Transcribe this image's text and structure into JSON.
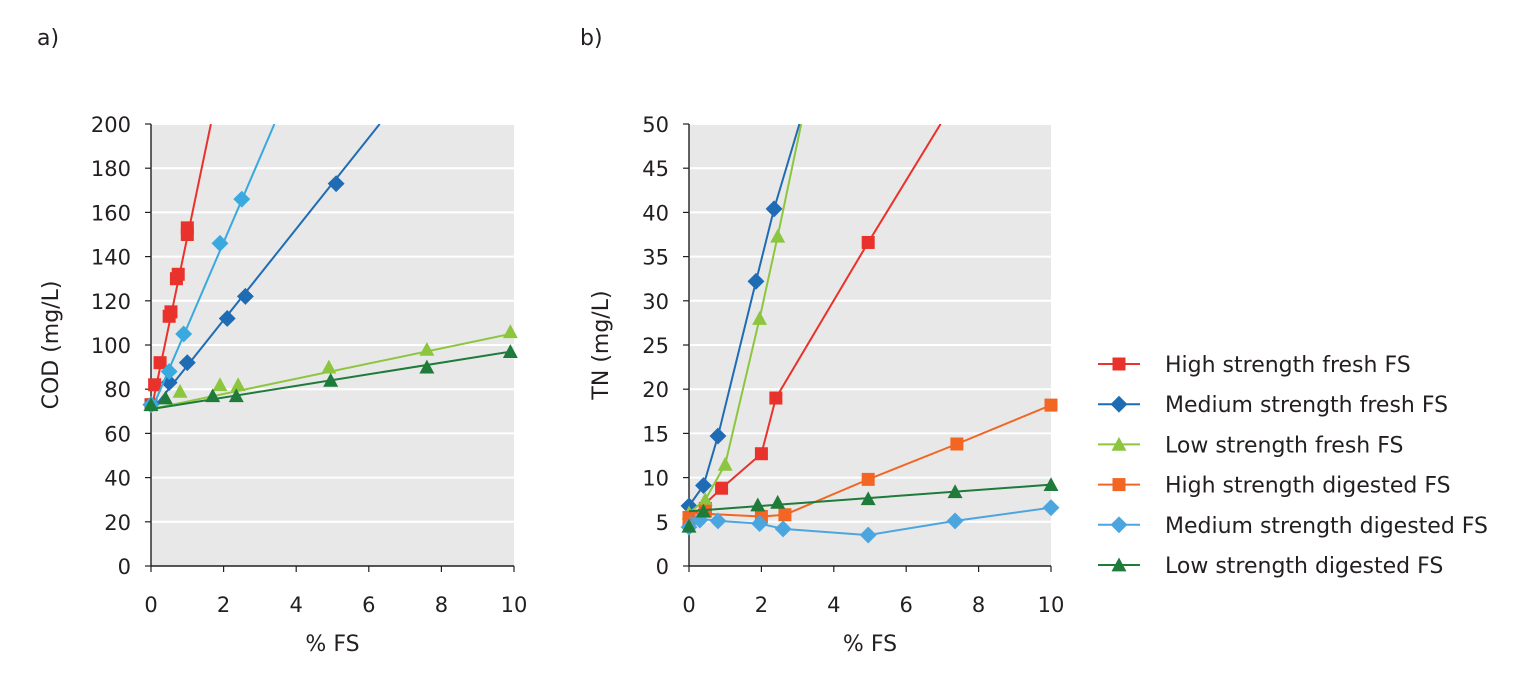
{
  "panels": [
    {
      "label": "a)"
    },
    {
      "label": "b)"
    }
  ],
  "colors": {
    "plot_bg": "#e8e8e8",
    "grid": "#ffffff",
    "axis": "#231f20",
    "high_fresh": "#e8322b",
    "medium_fresh": "#1f6cb4",
    "low_fresh": "#8cc63f",
    "high_digested": "#f26522",
    "medium_digested": "#4ba6e0",
    "low_digested": "#1e7b3a",
    "extra_light_blue_line": "#39a9e0"
  },
  "chart_data": [
    {
      "type": "scatter",
      "title": "",
      "xlabel": "% FS",
      "ylabel": "COD (mg/L)",
      "xlim": [
        0,
        10
      ],
      "ylim": [
        0,
        200
      ],
      "xticks": [
        "0",
        "2",
        "4",
        "6",
        "8",
        "10"
      ],
      "yticks": [
        "0",
        "20",
        "40",
        "60",
        "80",
        "100",
        "120",
        "140",
        "160",
        "180",
        "200"
      ],
      "series": [
        {
          "name": "High strength fresh FS",
          "color": "#e8322b",
          "marker": "square",
          "points": [
            [
              0,
              73
            ],
            [
              0.1,
              82
            ],
            [
              0.25,
              92
            ],
            [
              0.5,
              113
            ],
            [
              0.55,
              115
            ],
            [
              0.7,
              130
            ],
            [
              0.75,
              132
            ],
            [
              1.0,
              150
            ],
            [
              1.0,
              153
            ]
          ],
          "fit": [
            [
              0,
              70
            ],
            [
              1.65,
              200
            ]
          ]
        },
        {
          "name": "Medium strength fresh FS",
          "color": "#1f6cb4",
          "marker": "diamond",
          "points": [
            [
              0,
              73
            ],
            [
              0.5,
              83
            ],
            [
              1.0,
              92
            ],
            [
              2.1,
              112
            ],
            [
              2.6,
              122
            ],
            [
              5.1,
              173
            ]
          ],
          "fit": [
            [
              0,
              70
            ],
            [
              6.3,
              200
            ]
          ]
        },
        {
          "name": "Low strength fresh FS",
          "color": "#8cc63f",
          "marker": "triangle",
          "points": [
            [
              0,
              73
            ],
            [
              0.8,
              79
            ],
            [
              1.9,
              82
            ],
            [
              2.4,
              82
            ],
            [
              4.9,
              90
            ],
            [
              7.6,
              98
            ],
            [
              9.9,
              106
            ]
          ],
          "fit": [
            [
              0,
              71
            ],
            [
              9.9,
              105
            ]
          ]
        },
        {
          "name": "Medium strength digested FS",
          "color": "#39a9e0",
          "marker": "diamond",
          "points": [
            [
              0,
              73
            ],
            [
              0.5,
              88
            ],
            [
              0.9,
              105
            ],
            [
              1.9,
              146
            ],
            [
              2.5,
              166
            ]
          ],
          "fit": [
            [
              0,
              70
            ],
            [
              3.4,
              200
            ]
          ]
        },
        {
          "name": "Low strength digested FS",
          "color": "#1e7b3a",
          "marker": "triangle",
          "points": [
            [
              0,
              73
            ],
            [
              0.4,
              76
            ],
            [
              1.7,
              77
            ],
            [
              2.35,
              77
            ],
            [
              4.95,
              84
            ],
            [
              7.6,
              90
            ],
            [
              9.9,
              97
            ]
          ],
          "fit": [
            [
              0,
              71
            ],
            [
              9.9,
              97
            ]
          ]
        }
      ]
    },
    {
      "type": "scatter",
      "title": "",
      "xlabel": "% FS",
      "ylabel": "TN (mg/L)",
      "xlim": [
        0,
        10
      ],
      "ylim": [
        0,
        50
      ],
      "xticks": [
        "0",
        "2",
        "4",
        "6",
        "8",
        "10"
      ],
      "yticks": [
        "0",
        "5",
        "10",
        "15",
        "20",
        "25",
        "30",
        "35",
        "40",
        "45",
        "50"
      ],
      "series": [
        {
          "name": "High strength fresh FS",
          "color": "#e8322b",
          "marker": "square",
          "points": [
            [
              0,
              5.3
            ],
            [
              0.45,
              6.5
            ],
            [
              0.9,
              8.8
            ],
            [
              2.0,
              12.7
            ],
            [
              2.4,
              19.0
            ],
            [
              4.95,
              36.6
            ]
          ],
          "fit": [
            [
              0,
              5.3
            ],
            [
              0.9,
              8.8
            ],
            [
              2.0,
              12.7
            ],
            [
              2.4,
              19.0
            ],
            [
              4.95,
              36.6
            ],
            [
              6.95,
              50
            ]
          ]
        },
        {
          "name": "Medium strength fresh FS",
          "color": "#1f6cb4",
          "marker": "diamond",
          "points": [
            [
              0,
              6.8
            ],
            [
              0.4,
              9.1
            ],
            [
              0.8,
              14.7
            ],
            [
              1.85,
              32.2
            ],
            [
              2.35,
              40.4
            ]
          ],
          "fit": [
            [
              0,
              6.8
            ],
            [
              0.4,
              9.1
            ],
            [
              0.8,
              14.7
            ],
            [
              1.85,
              32.2
            ],
            [
              2.35,
              40.4
            ],
            [
              3.05,
              50
            ]
          ]
        },
        {
          "name": "Low strength fresh FS",
          "color": "#8cc63f",
          "marker": "triangle",
          "points": [
            [
              0,
              6.0
            ],
            [
              0.45,
              7.5
            ],
            [
              1.0,
              11.5
            ],
            [
              1.95,
              28.0
            ],
            [
              2.45,
              37.3
            ]
          ],
          "fit": [
            [
              0,
              6.0
            ],
            [
              0.45,
              7.5
            ],
            [
              1.0,
              11.5
            ],
            [
              1.95,
              28.0
            ],
            [
              2.45,
              37.3
            ],
            [
              3.1,
              50
            ]
          ]
        },
        {
          "name": "High strength digested FS",
          "color": "#f26522",
          "marker": "square",
          "points": [
            [
              0,
              5.5
            ],
            [
              0.45,
              6.2
            ],
            [
              2.0,
              5.6
            ],
            [
              2.65,
              5.8
            ],
            [
              4.95,
              9.8
            ],
            [
              7.4,
              13.8
            ],
            [
              10,
              18.2
            ]
          ],
          "fit": [
            [
              0,
              6.0
            ],
            [
              2.0,
              5.6
            ],
            [
              2.65,
              5.8
            ],
            [
              4.95,
              9.8
            ],
            [
              7.4,
              13.8
            ],
            [
              10,
              18.2
            ]
          ]
        },
        {
          "name": "Medium strength digested FS",
          "color": "#4ba6e0",
          "marker": "diamond",
          "points": [
            [
              0,
              4.4
            ],
            [
              0.3,
              5.2
            ],
            [
              0.8,
              5.1
            ],
            [
              1.95,
              4.8
            ],
            [
              2.6,
              4.2
            ],
            [
              4.95,
              3.5
            ],
            [
              7.35,
              5.1
            ],
            [
              10,
              6.6
            ]
          ],
          "fit": [
            [
              0,
              5.5
            ],
            [
              0.8,
              5.1
            ],
            [
              1.95,
              4.8
            ],
            [
              2.6,
              4.2
            ],
            [
              4.95,
              3.5
            ],
            [
              7.35,
              5.1
            ],
            [
              10,
              6.6
            ]
          ]
        },
        {
          "name": "Low strength digested FS",
          "color": "#1e7b3a",
          "marker": "triangle",
          "points": [
            [
              0,
              4.5
            ],
            [
              0.4,
              6.2
            ],
            [
              1.9,
              6.9
            ],
            [
              2.45,
              7.2
            ],
            [
              4.95,
              7.6
            ],
            [
              7.35,
              8.4
            ],
            [
              10,
              9.2
            ]
          ],
          "fit": [
            [
              0,
              6.2
            ],
            [
              10,
              9.2
            ]
          ]
        }
      ]
    }
  ],
  "legend": {
    "placement": "right",
    "items": [
      {
        "label": "High strength fresh FS",
        "color": "#e8322b",
        "marker": "square"
      },
      {
        "label": "Medium strength fresh FS",
        "color": "#1f6cb4",
        "marker": "diamond"
      },
      {
        "label": "Low strength fresh FS",
        "color": "#8cc63f",
        "marker": "triangle"
      },
      {
        "label": "High strength digested FS",
        "color": "#f26522",
        "marker": "square"
      },
      {
        "label": "Medium strength digested FS",
        "color": "#4ba6e0",
        "marker": "diamond"
      },
      {
        "label": "Low strength digested FS",
        "color": "#1e7b3a",
        "marker": "triangle"
      }
    ]
  }
}
